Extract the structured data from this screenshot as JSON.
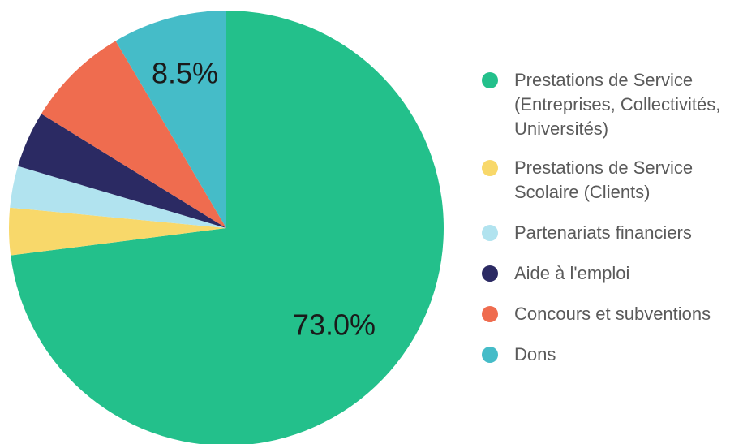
{
  "chart_data": {
    "type": "pie",
    "start": "12 o'clock, clockwise",
    "legend_position": "right",
    "slices": [
      {
        "label": "Prestations de Service\n(Entreprises, Collectivités,\nUniversités)",
        "value": 73.0,
        "color": "#23c08b",
        "data_label": "73.0%"
      },
      {
        "label": "Prestations de Service\nScolaire (Clients)",
        "value": 3.5,
        "color": "#f8d86a"
      },
      {
        "label": "Partenariats financiers",
        "value": 3.1,
        "color": "#b1e3ef"
      },
      {
        "label": "Aide à l'emploi",
        "value": 4.2,
        "color": "#2b2a63"
      },
      {
        "label": "Concours et subventions",
        "value": 7.7,
        "color": "#ef6c4f"
      },
      {
        "label": "Dons",
        "value": 8.5,
        "color": "#45bcc8",
        "data_label": "8.5%"
      }
    ]
  }
}
